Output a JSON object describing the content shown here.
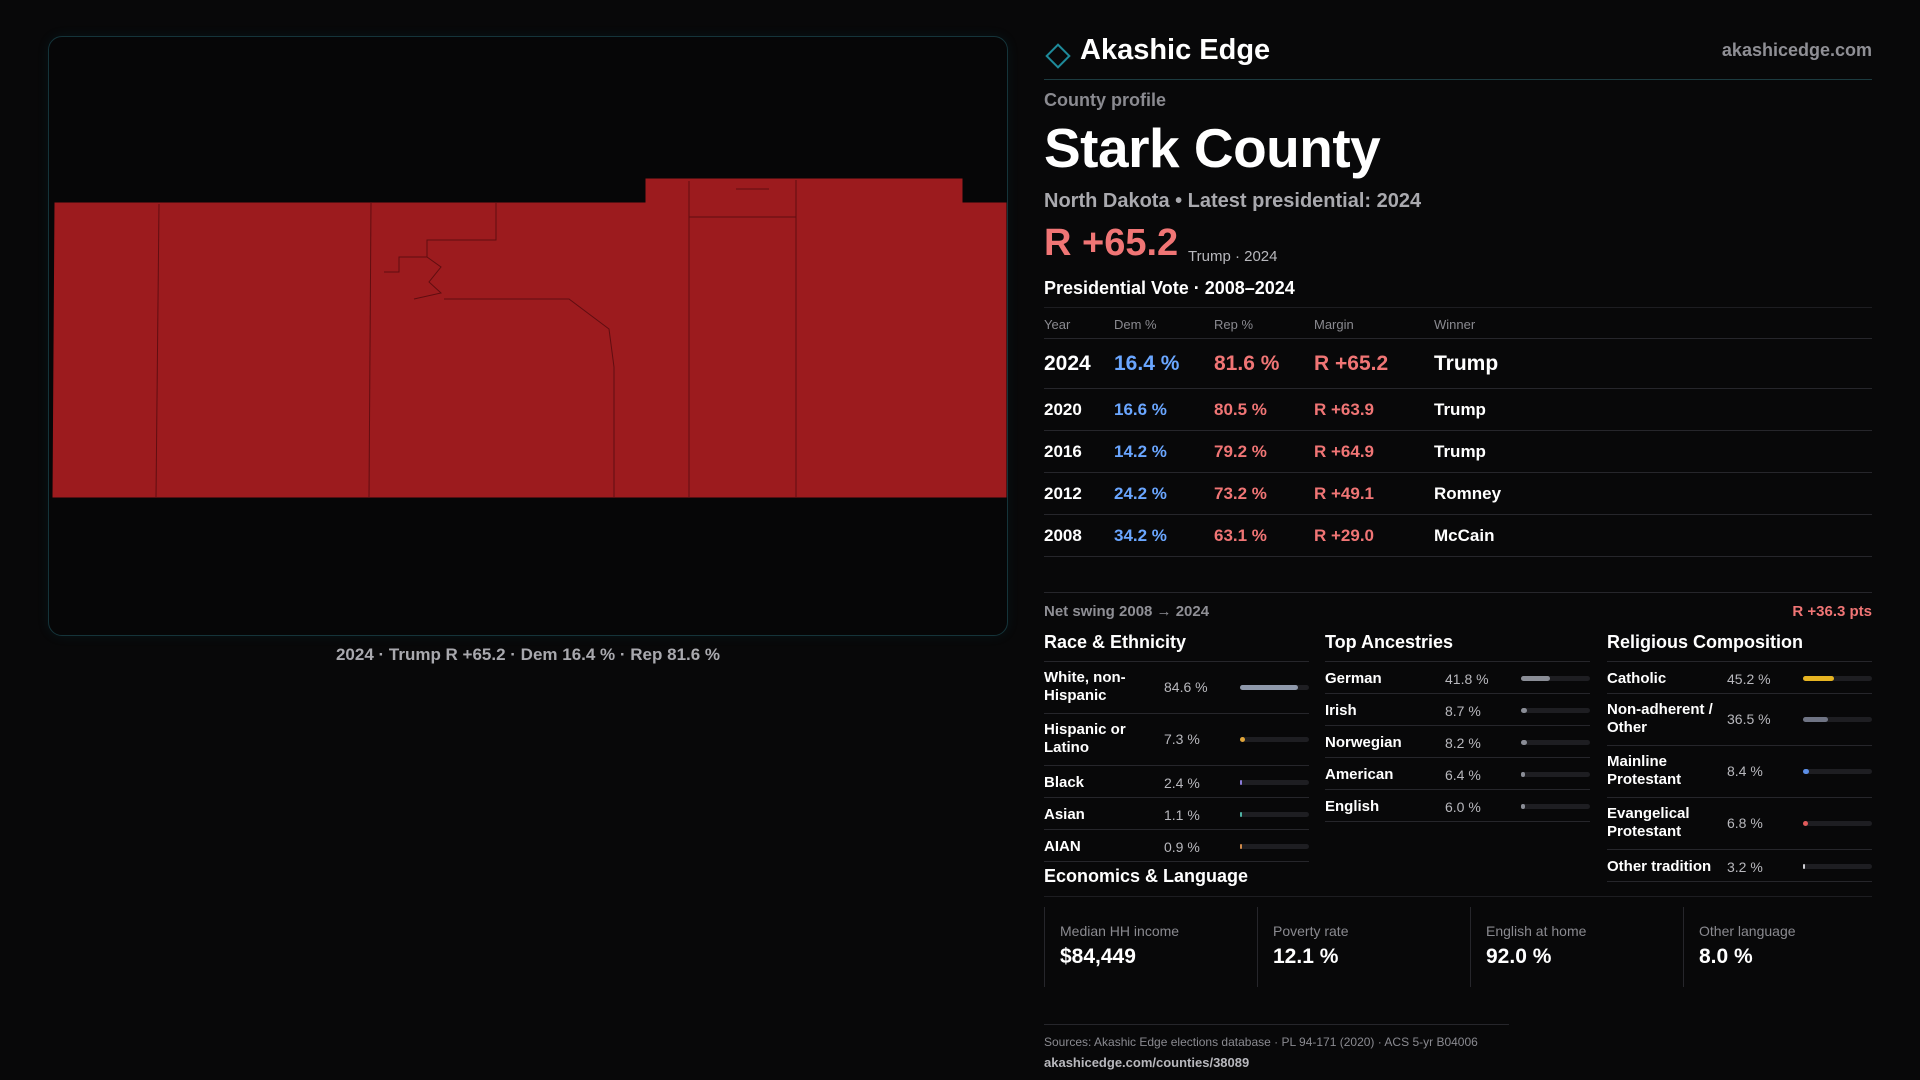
{
  "brand": {
    "name": "Akashic Edge",
    "url": "akashicedge.com"
  },
  "profile": {
    "eyebrow": "County profile",
    "county": "Stark County",
    "subtitle": "North Dakota • Latest presidential: 2024",
    "headline_margin": "R +65.2",
    "headline_note": "Trump · 2024"
  },
  "map": {
    "caption": "2024 · Trump R +65.2 · Dem 16.4 % · Rep 81.6 %",
    "fill_color": "#9c1b1e",
    "line_color": "#5a0c0f"
  },
  "vote": {
    "title": "Presidential Vote · 2008–2024",
    "headers": {
      "year": "Year",
      "dem": "Dem %",
      "rep": "Rep %",
      "margin": "Margin",
      "winner": "Winner"
    },
    "rows": [
      {
        "year": "2024",
        "dem": "16.4 %",
        "rep": "81.6 %",
        "margin": "R +65.2",
        "winner": "Trump"
      },
      {
        "year": "2020",
        "dem": "16.6 %",
        "rep": "80.5 %",
        "margin": "R +63.9",
        "winner": "Trump"
      },
      {
        "year": "2016",
        "dem": "14.2 %",
        "rep": "79.2 %",
        "margin": "R +64.9",
        "winner": "Trump"
      },
      {
        "year": "2012",
        "dem": "24.2 %",
        "rep": "73.2 %",
        "margin": "R +49.1",
        "winner": "Romney"
      },
      {
        "year": "2008",
        "dem": "34.2 %",
        "rep": "63.1 %",
        "margin": "R +29.0",
        "winner": "McCain"
      }
    ],
    "net_swing_label": "Net swing 2008 → 2024",
    "net_swing_value": "R +36.3 pts"
  },
  "race": {
    "title": "Race & Ethnicity",
    "items": [
      {
        "label": "White, non-Hispanic",
        "value": "84.6 %",
        "pct": 84.6,
        "color": "#8f99ab"
      },
      {
        "label": "Hispanic or Latino",
        "value": "7.3 %",
        "pct": 7.3,
        "color": "#e0a53a"
      },
      {
        "label": "Black",
        "value": "2.4 %",
        "pct": 2.4,
        "color": "#8b7bd8"
      },
      {
        "label": "Asian",
        "value": "1.1 %",
        "pct": 1.1,
        "color": "#4fb3a4"
      },
      {
        "label": "AIAN",
        "value": "0.9 %",
        "pct": 0.9,
        "color": "#d08a4a"
      }
    ]
  },
  "ancestry": {
    "title": "Top Ancestries",
    "items": [
      {
        "label": "German",
        "value": "41.8 %",
        "pct": 41.8,
        "color": "#8a8d96"
      },
      {
        "label": "Irish",
        "value": "8.7 %",
        "pct": 8.7,
        "color": "#8a8d96"
      },
      {
        "label": "Norwegian",
        "value": "8.2 %",
        "pct": 8.2,
        "color": "#8a8d96"
      },
      {
        "label": "American",
        "value": "6.4 %",
        "pct": 6.4,
        "color": "#8a8d96"
      },
      {
        "label": "English",
        "value": "6.0 %",
        "pct": 6.0,
        "color": "#8a8d96"
      }
    ]
  },
  "religion": {
    "title": "Religious Composition",
    "items": [
      {
        "label": "Catholic",
        "value": "45.2 %",
        "pct": 45.2,
        "color": "#e6b422"
      },
      {
        "label": "Non-adherent / Other",
        "value": "36.5 %",
        "pct": 36.5,
        "color": "#6f7484"
      },
      {
        "label": "Mainline Protestant",
        "value": "8.4 %",
        "pct": 8.4,
        "color": "#5b8ee6"
      },
      {
        "label": "Evangelical Protestant",
        "value": "6.8 %",
        "pct": 6.8,
        "color": "#e05a5a"
      },
      {
        "label": "Other tradition",
        "value": "3.2 %",
        "pct": 3.2,
        "color": "#cfcfd4"
      }
    ]
  },
  "economics": {
    "title": "Economics & Language",
    "cards": [
      {
        "label": "Median HH income",
        "value": "$84,449"
      },
      {
        "label": "Poverty rate",
        "value": "12.1 %"
      },
      {
        "label": "English at home",
        "value": "92.0 %"
      },
      {
        "label": "Other language",
        "value": "8.0 %"
      }
    ]
  },
  "sources": {
    "line": "Sources: Akashic Edge elections database · PL 94-171 (2020) · ACS 5-yr B04006",
    "url": "akashicedge.com/counties/38089"
  },
  "colors": {
    "dem": "#6aa6ff",
    "rep": "#f07575",
    "accent": "#1e8a9a"
  }
}
